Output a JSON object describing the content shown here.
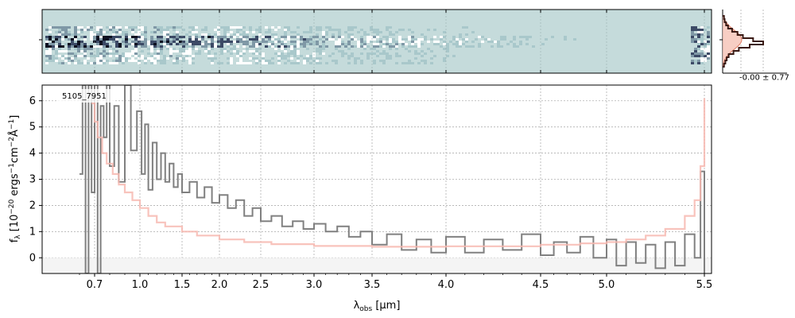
{
  "chart_data": [
    {
      "type": "heatmap",
      "panel": "2d-spectrum",
      "description_colors": {
        "background": "#c5dbdb",
        "dark": "#1b2138"
      },
      "grid": true
    },
    {
      "type": "histogram",
      "panel": "pixel-distribution",
      "annotation": "-0.00 ± 0.77",
      "series_colors": {
        "outline": "#3a1a14",
        "fill": "#f5c2b5",
        "line": "#e07a62"
      }
    },
    {
      "type": "line",
      "panel": "1d-spectrum",
      "title": "",
      "annotation": "5105_7951",
      "xlabel": "λ_obs [μm]",
      "ylabel": "f_λ [10^−20 ergs^−1cm^−2Å^−1]",
      "x_tick_labels": [
        "0.7",
        "1.0",
        "1.5",
        "2.0",
        "2.5",
        "3.0",
        "3.5",
        "4.0",
        "4.5",
        "5.0",
        "5.5"
      ],
      "x_tick_values": [
        0.7,
        1.0,
        1.5,
        2.0,
        2.5,
        3.0,
        3.5,
        4.0,
        4.5,
        5.0,
        5.5
      ],
      "x_scale": "reciprocal-like",
      "ylim": [
        -0.6,
        6.6
      ],
      "y_ticks": [
        0,
        1,
        2,
        3,
        4,
        5,
        6
      ],
      "grid": true,
      "series": [
        {
          "color": "#808080",
          "style": "steps",
          "points": [
            [
              0.6,
              3.2
            ],
            [
              0.62,
              6.6
            ],
            [
              0.64,
              -0.6
            ],
            [
              0.66,
              6.6
            ],
            [
              0.68,
              2.5
            ],
            [
              0.7,
              6.6
            ],
            [
              0.72,
              -0.6
            ],
            [
              0.74,
              5.8
            ],
            [
              0.76,
              4.6
            ],
            [
              0.78,
              6.6
            ],
            [
              0.8,
              3.5
            ],
            [
              0.83,
              5.8
            ],
            [
              0.86,
              2.9
            ],
            [
              0.9,
              6.6
            ],
            [
              0.94,
              4.1
            ],
            [
              0.98,
              5.6
            ],
            [
              1.02,
              3.2
            ],
            [
              1.06,
              5.1
            ],
            [
              1.1,
              2.6
            ],
            [
              1.15,
              4.4
            ],
            [
              1.2,
              3.0
            ],
            [
              1.25,
              4.0
            ],
            [
              1.3,
              2.9
            ],
            [
              1.35,
              3.6
            ],
            [
              1.4,
              2.7
            ],
            [
              1.45,
              3.2
            ],
            [
              1.5,
              2.5
            ],
            [
              1.6,
              2.9
            ],
            [
              1.7,
              2.3
            ],
            [
              1.8,
              2.7
            ],
            [
              1.9,
              2.1
            ],
            [
              2.0,
              2.4
            ],
            [
              2.1,
              1.9
            ],
            [
              2.2,
              2.2
            ],
            [
              2.3,
              1.6
            ],
            [
              2.4,
              1.9
            ],
            [
              2.5,
              1.4
            ],
            [
              2.6,
              1.6
            ],
            [
              2.7,
              1.2
            ],
            [
              2.8,
              1.4
            ],
            [
              2.9,
              1.1
            ],
            [
              3.0,
              1.3
            ],
            [
              3.1,
              1.0
            ],
            [
              3.2,
              1.2
            ],
            [
              3.3,
              0.8
            ],
            [
              3.4,
              1.0
            ],
            [
              3.5,
              0.5
            ],
            [
              3.6,
              0.9
            ],
            [
              3.7,
              0.3
            ],
            [
              3.8,
              0.7
            ],
            [
              3.9,
              0.2
            ],
            [
              4.0,
              0.8
            ],
            [
              4.1,
              0.2
            ],
            [
              4.2,
              0.7
            ],
            [
              4.3,
              0.3
            ],
            [
              4.4,
              0.9
            ],
            [
              4.5,
              0.1
            ],
            [
              4.6,
              0.6
            ],
            [
              4.7,
              0.2
            ],
            [
              4.8,
              0.8
            ],
            [
              4.9,
              0.0
            ],
            [
              5.0,
              0.7
            ],
            [
              5.05,
              -0.3
            ],
            [
              5.1,
              0.6
            ],
            [
              5.15,
              -0.2
            ],
            [
              5.2,
              0.5
            ],
            [
              5.25,
              -0.4
            ],
            [
              5.3,
              0.6
            ],
            [
              5.35,
              -0.3
            ],
            [
              5.4,
              0.9
            ],
            [
              5.45,
              0.0
            ],
            [
              5.48,
              3.3
            ],
            [
              5.5,
              -0.6
            ]
          ]
        },
        {
          "color": "#f7b8b0",
          "style": "steps",
          "points": [
            [
              0.68,
              5.9
            ],
            [
              0.7,
              5.2
            ],
            [
              0.72,
              4.6
            ],
            [
              0.75,
              4.0
            ],
            [
              0.78,
              3.6
            ],
            [
              0.82,
              3.2
            ],
            [
              0.86,
              2.8
            ],
            [
              0.9,
              2.5
            ],
            [
              0.95,
              2.2
            ],
            [
              1.0,
              1.9
            ],
            [
              1.1,
              1.6
            ],
            [
              1.2,
              1.35
            ],
            [
              1.3,
              1.2
            ],
            [
              1.5,
              1.0
            ],
            [
              1.7,
              0.85
            ],
            [
              2.0,
              0.7
            ],
            [
              2.3,
              0.6
            ],
            [
              2.6,
              0.52
            ],
            [
              3.0,
              0.45
            ],
            [
              3.5,
              0.42
            ],
            [
              4.0,
              0.44
            ],
            [
              4.5,
              0.5
            ],
            [
              4.8,
              0.55
            ],
            [
              5.0,
              0.6
            ],
            [
              5.1,
              0.7
            ],
            [
              5.2,
              0.85
            ],
            [
              5.3,
              1.1
            ],
            [
              5.4,
              1.6
            ],
            [
              5.45,
              2.2
            ],
            [
              5.48,
              3.5
            ],
            [
              5.5,
              6.1
            ]
          ]
        }
      ]
    }
  ]
}
